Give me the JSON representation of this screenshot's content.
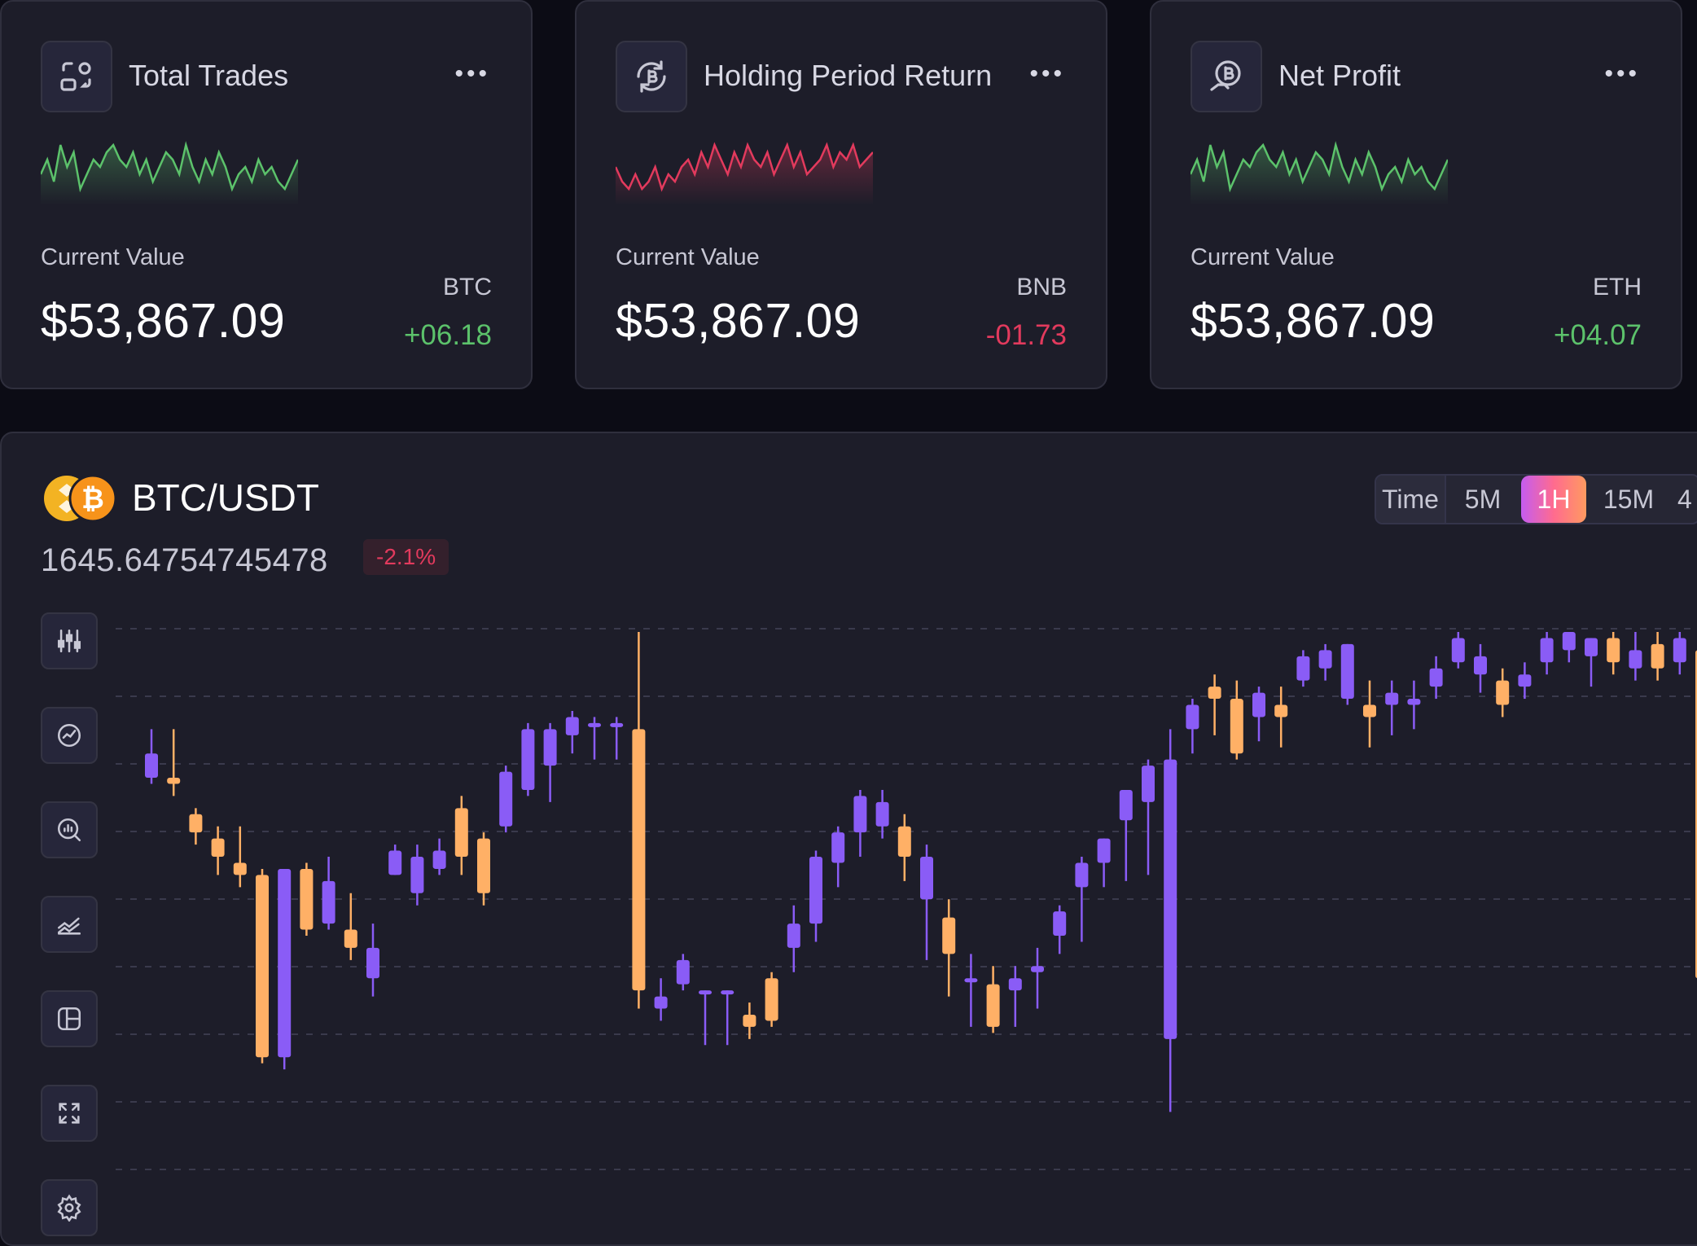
{
  "cards": [
    {
      "title": "Total Trades",
      "icon": "exchange-icon",
      "current_label": "Current Value",
      "value": "$53,867.09",
      "ticker": "BTC",
      "change": "+06.18",
      "trend": "up",
      "color": "#5cc26b"
    },
    {
      "title": "Holding Period Return",
      "icon": "bitcoin-refresh-icon",
      "current_label": "Current Value",
      "value": "$53,867.09",
      "ticker": "BNB",
      "change": "-01.73",
      "trend": "down",
      "color": "#e23a5d"
    },
    {
      "title": "Net Profit",
      "icon": "bitcoin-hand-icon",
      "current_label": "Current Value",
      "value": "$53,867.09",
      "ticker": "ETH",
      "change": "+04.07",
      "trend": "up",
      "color": "#5cc26b"
    }
  ],
  "chart_panel": {
    "pair": "BTC/USDT",
    "price": "1645.64754745478",
    "change_pct": "-2.1%",
    "timeframes": [
      "Time",
      "5M",
      "1H",
      "15M",
      "4"
    ],
    "active_timeframe": "1H",
    "tools": [
      "indicators-icon",
      "line-chart-icon",
      "analysis-icon",
      "compare-icon",
      "layout-icon",
      "fullscreen-icon",
      "settings-icon"
    ]
  },
  "colors": {
    "bull": "#8a5cf6",
    "bear": "#ffb066",
    "grid": "#3a3a4c",
    "up": "#5cc26b",
    "down": "#e23a5d"
  },
  "chart_data": {
    "type": "candlestick",
    "title": "BTC/USDT",
    "xlabel": "",
    "ylabel": "",
    "ylim": [
      0,
      100
    ],
    "grid": true,
    "series": [
      {
        "o": 76,
        "c": 80,
        "h": 84,
        "l": 75
      },
      {
        "o": 76,
        "c": 75,
        "h": 84,
        "l": 73
      },
      {
        "o": 70,
        "c": 67,
        "h": 71,
        "l": 65
      },
      {
        "o": 66,
        "c": 63,
        "h": 68,
        "l": 60
      },
      {
        "o": 62,
        "c": 60,
        "h": 68,
        "l": 58
      },
      {
        "o": 60,
        "c": 30,
        "h": 61,
        "l": 29
      },
      {
        "o": 30,
        "c": 61,
        "h": 61,
        "l": 28
      },
      {
        "o": 61,
        "c": 51,
        "h": 62,
        "l": 50
      },
      {
        "o": 52,
        "c": 59,
        "h": 63,
        "l": 51
      },
      {
        "o": 51,
        "c": 48,
        "h": 57,
        "l": 46
      },
      {
        "o": 43,
        "c": 48,
        "h": 52,
        "l": 40
      },
      {
        "o": 60,
        "c": 64,
        "h": 65,
        "l": 60
      },
      {
        "o": 57,
        "c": 63,
        "h": 65,
        "l": 55
      },
      {
        "o": 61,
        "c": 64,
        "h": 66,
        "l": 60
      },
      {
        "o": 71,
        "c": 63,
        "h": 73,
        "l": 60
      },
      {
        "o": 66,
        "c": 57,
        "h": 67,
        "l": 55
      },
      {
        "o": 68,
        "c": 77,
        "h": 78,
        "l": 67
      },
      {
        "o": 74,
        "c": 84,
        "h": 85,
        "l": 73
      },
      {
        "o": 78,
        "c": 84,
        "h": 85,
        "l": 72
      },
      {
        "o": 83,
        "c": 86,
        "h": 87,
        "l": 80
      },
      {
        "o": 85,
        "c": 85,
        "h": 86,
        "l": 79
      },
      {
        "o": 85,
        "c": 85,
        "h": 86,
        "l": 79
      },
      {
        "o": 84,
        "c": 41,
        "h": 100,
        "l": 38
      },
      {
        "o": 38,
        "c": 40,
        "h": 43,
        "l": 36
      },
      {
        "o": 42,
        "c": 46,
        "h": 47,
        "l": 41
      },
      {
        "o": 41,
        "c": 41,
        "h": 41,
        "l": 32
      },
      {
        "o": 41,
        "c": 41,
        "h": 41,
        "l": 32
      },
      {
        "o": 37,
        "c": 35,
        "h": 39,
        "l": 33
      },
      {
        "o": 43,
        "c": 36,
        "h": 44,
        "l": 35
      },
      {
        "o": 48,
        "c": 52,
        "h": 55,
        "l": 44
      },
      {
        "o": 52,
        "c": 63,
        "h": 64,
        "l": 49
      },
      {
        "o": 62,
        "c": 67,
        "h": 68,
        "l": 58
      },
      {
        "o": 67,
        "c": 73,
        "h": 74,
        "l": 63
      },
      {
        "o": 68,
        "c": 72,
        "h": 74,
        "l": 66
      },
      {
        "o": 68,
        "c": 63,
        "h": 70,
        "l": 59
      },
      {
        "o": 56,
        "c": 63,
        "h": 65,
        "l": 46
      },
      {
        "o": 53,
        "c": 47,
        "h": 56,
        "l": 40
      },
      {
        "o": 43,
        "c": 43,
        "h": 47,
        "l": 35
      },
      {
        "o": 42,
        "c": 35,
        "h": 45,
        "l": 34
      },
      {
        "o": 41,
        "c": 43,
        "h": 45,
        "l": 35
      },
      {
        "o": 44,
        "c": 45,
        "h": 48,
        "l": 38
      },
      {
        "o": 50,
        "c": 54,
        "h": 55,
        "l": 47
      },
      {
        "o": 58,
        "c": 62,
        "h": 63,
        "l": 49
      },
      {
        "o": 62,
        "c": 66,
        "h": 66,
        "l": 58
      },
      {
        "o": 69,
        "c": 74,
        "h": 74,
        "l": 59
      },
      {
        "o": 72,
        "c": 78,
        "h": 79,
        "l": 60
      },
      {
        "o": 33,
        "c": 79,
        "h": 84,
        "l": 21
      },
      {
        "o": 84,
        "c": 88,
        "h": 89,
        "l": 80
      },
      {
        "o": 91,
        "c": 89,
        "h": 93,
        "l": 83
      },
      {
        "o": 89,
        "c": 80,
        "h": 92,
        "l": 79
      },
      {
        "o": 86,
        "c": 90,
        "h": 91,
        "l": 82
      },
      {
        "o": 88,
        "c": 86,
        "h": 91,
        "l": 81
      },
      {
        "o": 92,
        "c": 96,
        "h": 97,
        "l": 91
      },
      {
        "o": 94,
        "c": 97,
        "h": 98,
        "l": 92
      },
      {
        "o": 89,
        "c": 98,
        "h": 98,
        "l": 88
      },
      {
        "o": 88,
        "c": 86,
        "h": 92,
        "l": 81
      },
      {
        "o": 88,
        "c": 90,
        "h": 92,
        "l": 83
      },
      {
        "o": 88,
        "c": 89,
        "h": 92,
        "l": 84
      },
      {
        "o": 91,
        "c": 94,
        "h": 96,
        "l": 89
      },
      {
        "o": 95,
        "c": 99,
        "h": 100,
        "l": 94
      },
      {
        "o": 93,
        "c": 96,
        "h": 98,
        "l": 90
      },
      {
        "o": 92,
        "c": 88,
        "h": 94,
        "l": 86
      },
      {
        "o": 91,
        "c": 93,
        "h": 95,
        "l": 89
      },
      {
        "o": 95,
        "c": 99,
        "h": 100,
        "l": 93
      },
      {
        "o": 97,
        "c": 100,
        "h": 100,
        "l": 95
      },
      {
        "o": 96,
        "c": 99,
        "h": 99,
        "l": 91
      },
      {
        "o": 99,
        "c": 95,
        "h": 100,
        "l": 93
      },
      {
        "o": 94,
        "c": 97,
        "h": 100,
        "l": 92
      },
      {
        "o": 98,
        "c": 94,
        "h": 100,
        "l": 92
      },
      {
        "o": 95,
        "c": 99,
        "h": 100,
        "l": 93
      },
      {
        "o": 97,
        "c": 43,
        "h": 99,
        "l": 41
      }
    ],
    "sparklines": [
      [
        5,
        7,
        4,
        9,
        6,
        8,
        3,
        5,
        7,
        6,
        8,
        9,
        7,
        6,
        8,
        5,
        7,
        4,
        6,
        8,
        7,
        5,
        9,
        6,
        4,
        7,
        5,
        8,
        6,
        3,
        5,
        6,
        4,
        7,
        5,
        6,
        4,
        3,
        5,
        7
      ],
      [
        6,
        4,
        3,
        5,
        3,
        4,
        6,
        3,
        5,
        4,
        6,
        7,
        5,
        8,
        6,
        9,
        7,
        5,
        8,
        6,
        9,
        7,
        6,
        8,
        5,
        7,
        9,
        6,
        8,
        5,
        6,
        7,
        9,
        6,
        8,
        7,
        9,
        6,
        7,
        8
      ],
      [
        5,
        7,
        4,
        9,
        6,
        8,
        3,
        5,
        7,
        6,
        8,
        9,
        7,
        6,
        8,
        5,
        7,
        4,
        6,
        8,
        7,
        5,
        9,
        6,
        4,
        7,
        5,
        8,
        6,
        3,
        5,
        6,
        4,
        7,
        5,
        6,
        4,
        3,
        5,
        7
      ]
    ]
  }
}
